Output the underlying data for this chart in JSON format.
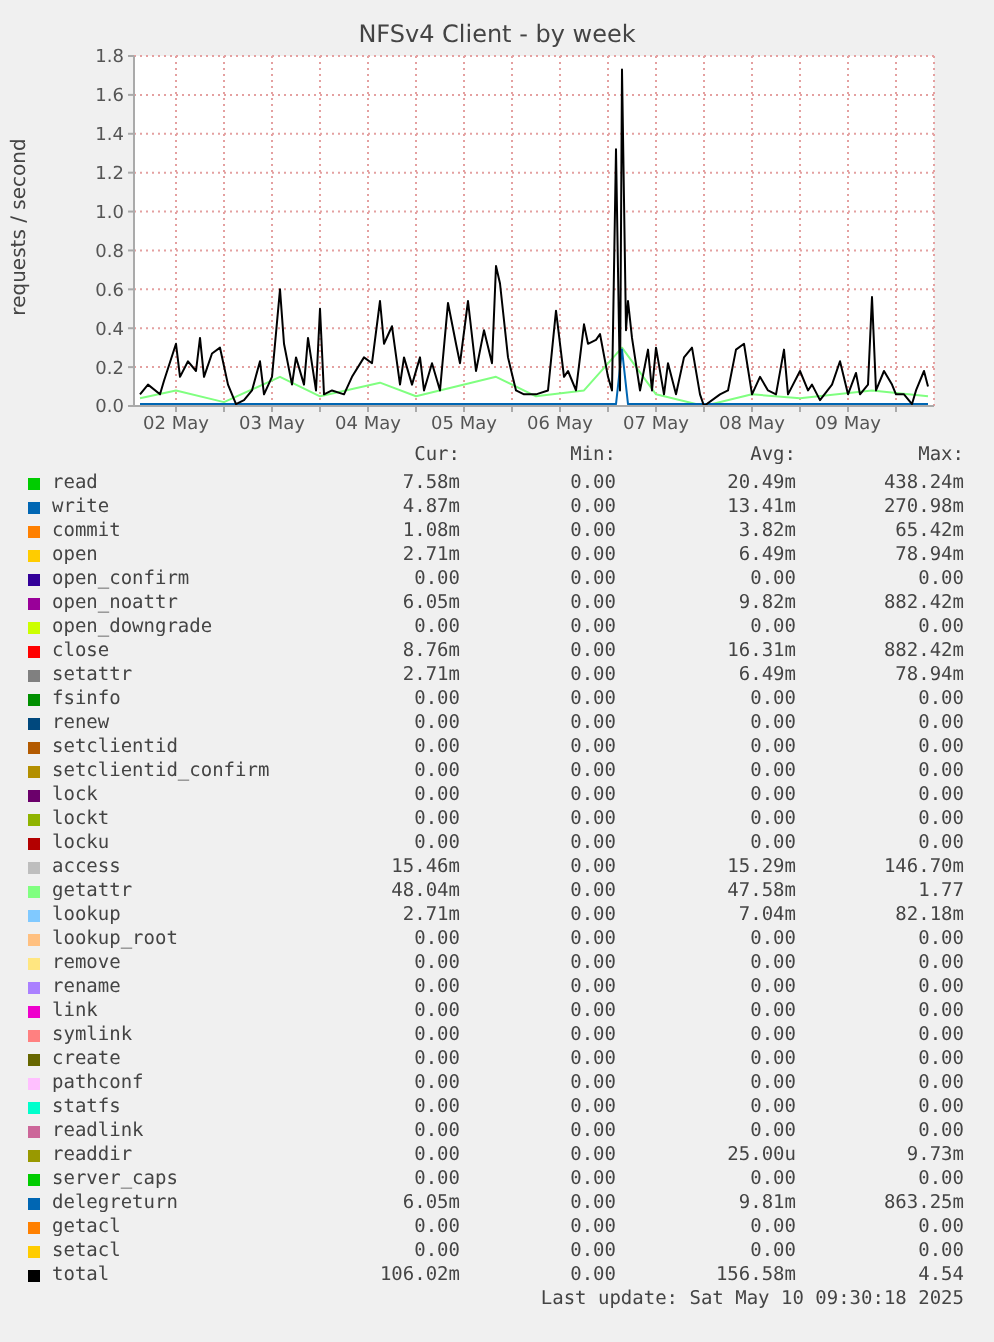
{
  "chart_data": {
    "type": "line",
    "title": "NFSv4 Client - by week",
    "ylabel": "requests / second",
    "xlim": [
      "2025-05-02T01:30",
      "2025-05-10T09:30"
    ],
    "xticks": [
      {
        "value": "2025-05-02T12:00",
        "label": "02 May"
      },
      {
        "value": "2025-05-03T00:00",
        "label": null
      },
      {
        "value": "2025-05-03T12:00",
        "label": "03 May"
      },
      {
        "value": "2025-05-04T00:00",
        "label": null
      },
      {
        "value": "2025-05-04T12:00",
        "label": "04 May"
      },
      {
        "value": "2025-05-05T00:00",
        "label": null
      },
      {
        "value": "2025-05-05T12:00",
        "label": "05 May"
      },
      {
        "value": "2025-05-06T00:00",
        "label": null
      },
      {
        "value": "2025-05-06T12:00",
        "label": "06 May"
      },
      {
        "value": "2025-05-07T00:00",
        "label": null
      },
      {
        "value": "2025-05-07T12:00",
        "label": "07 May"
      },
      {
        "value": "2025-05-08T00:00",
        "label": null
      },
      {
        "value": "2025-05-08T12:00",
        "label": "08 May"
      },
      {
        "value": "2025-05-09T00:00",
        "label": null
      },
      {
        "value": "2025-05-09T12:00",
        "label": "09 May"
      },
      {
        "value": "2025-05-10T00:00",
        "label": null
      }
    ],
    "ylim": [
      0,
      1.8
    ],
    "yticks": [
      {
        "value": 0,
        "label": "0.0"
      },
      {
        "value": 0.2,
        "label": "0.2"
      },
      {
        "value": 0.4,
        "label": "0.4"
      },
      {
        "value": 0.6,
        "label": "0.6"
      },
      {
        "value": 0.8,
        "label": "0.8"
      },
      {
        "value": 1,
        "label": "1.0"
      },
      {
        "value": 1.2,
        "label": "1.2"
      },
      {
        "value": 1.4,
        "label": "1.4"
      },
      {
        "value": 1.6,
        "label": "1.6"
      },
      {
        "value": 1.8,
        "label": "1.8"
      }
    ],
    "grid": true,
    "legend": "bottom",
    "series": [
      {
        "name": "read",
        "color": "#00cc00"
      },
      {
        "name": "write",
        "color": "#0066b3"
      },
      {
        "name": "commit",
        "color": "#ff8000"
      },
      {
        "name": "open",
        "color": "#ffcc00"
      },
      {
        "name": "open_confirm",
        "color": "#330099"
      },
      {
        "name": "open_noattr",
        "color": "#990099"
      },
      {
        "name": "open_downgrade",
        "color": "#ccff00"
      },
      {
        "name": "close",
        "color": "#ff0000"
      },
      {
        "name": "setattr",
        "color": "#808080"
      },
      {
        "name": "fsinfo",
        "color": "#008f00"
      },
      {
        "name": "renew",
        "color": "#00487d"
      },
      {
        "name": "setclientid",
        "color": "#b35a00"
      },
      {
        "name": "setclientid_confirm",
        "color": "#b38f00"
      },
      {
        "name": "lock",
        "color": "#6b006b"
      },
      {
        "name": "lockt",
        "color": "#8fb300"
      },
      {
        "name": "locku",
        "color": "#b30000"
      },
      {
        "name": "access",
        "color": "#bebebe"
      },
      {
        "name": "getattr",
        "color": "#80ff80",
        "x": [
          "2025-05-02T03:00",
          "2025-05-02T12:00",
          "2025-05-03T00:00",
          "2025-05-03T14:00",
          "2025-05-04T00:00",
          "2025-05-04T15:00",
          "2025-05-05T00:00",
          "2025-05-05T20:00",
          "2025-05-06T06:00",
          "2025-05-06T18:00",
          "2025-05-07T03:30",
          "2025-05-07T12:00",
          "2025-05-08T00:00",
          "2025-05-08T12:00",
          "2025-05-09T00:00",
          "2025-05-09T18:00",
          "2025-05-10T08:00"
        ],
        "values": [
          0.04,
          0.08,
          0.02,
          0.15,
          0.05,
          0.12,
          0.05,
          0.15,
          0.05,
          0.08,
          0.3,
          0.06,
          0,
          0.06,
          0.04,
          0.08,
          0.05
        ]
      },
      {
        "name": "lookup",
        "color": "#80c9ff"
      },
      {
        "name": "lookup_root",
        "color": "#ffc080"
      },
      {
        "name": "remove",
        "color": "#ffe680"
      },
      {
        "name": "rename",
        "color": "#aa80ff"
      },
      {
        "name": "link",
        "color": "#ee00cc"
      },
      {
        "name": "symlink",
        "color": "#ff8080"
      },
      {
        "name": "create",
        "color": "#666600"
      },
      {
        "name": "pathconf",
        "color": "#ffbfff"
      },
      {
        "name": "statfs",
        "color": "#00ffcc"
      },
      {
        "name": "readlink",
        "color": "#cc6699"
      },
      {
        "name": "readdir",
        "color": "#999900"
      },
      {
        "name": "server_caps",
        "color": "#00cc00"
      },
      {
        "name": "delegreturn",
        "color": "#0066b3",
        "x": [
          "2025-05-02T03:00",
          "2025-05-07T02:00",
          "2025-05-07T03:30",
          "2025-05-07T05:00",
          "2025-05-10T08:00"
        ],
        "values": [
          0.01,
          0.01,
          0.29,
          0.01,
          0.01
        ]
      },
      {
        "name": "getacl",
        "color": "#ff8000"
      },
      {
        "name": "setacl",
        "color": "#ffcc00"
      },
      {
        "name": "total",
        "color": "#000000",
        "x": [
          "2025-05-02T03:00",
          "2025-05-02T05:00",
          "2025-05-02T08:00",
          "2025-05-02T09:00",
          "2025-05-02T12:00",
          "2025-05-02T13:00",
          "2025-05-02T15:00",
          "2025-05-02T17:00",
          "2025-05-02T18:00",
          "2025-05-02T19:00",
          "2025-05-02T21:00",
          "2025-05-02T23:00",
          "2025-05-03T01:00",
          "2025-05-03T03:00",
          "2025-05-03T05:00",
          "2025-05-03T07:00",
          "2025-05-03T09:00",
          "2025-05-03T10:00",
          "2025-05-03T12:00",
          "2025-05-03T14:00",
          "2025-05-03T15:00",
          "2025-05-03T17:00",
          "2025-05-03T18:00",
          "2025-05-03T20:00",
          "2025-05-03T21:00",
          "2025-05-03T23:00",
          "2025-05-04T00:00",
          "2025-05-04T01:00",
          "2025-05-04T03:00",
          "2025-05-04T06:00",
          "2025-05-04T08:00",
          "2025-05-04T11:00",
          "2025-05-04T13:00",
          "2025-05-04T15:00",
          "2025-05-04T16:00",
          "2025-05-04T18:00",
          "2025-05-04T20:00",
          "2025-05-04T21:00",
          "2025-05-04T23:00",
          "2025-05-05T01:00",
          "2025-05-05T02:00",
          "2025-05-05T04:00",
          "2025-05-05T06:00",
          "2025-05-05T08:00",
          "2025-05-05T10:00",
          "2025-05-05T11:00",
          "2025-05-05T13:00",
          "2025-05-05T15:00",
          "2025-05-05T17:00",
          "2025-05-05T19:00",
          "2025-05-05T20:00",
          "2025-05-05T21:00",
          "2025-05-05T23:00",
          "2025-05-06T01:00",
          "2025-05-06T03:00",
          "2025-05-06T06:00",
          "2025-05-06T09:00",
          "2025-05-06T11:00",
          "2025-05-06T13:00",
          "2025-05-06T14:00",
          "2025-05-06T16:00",
          "2025-05-06T18:00",
          "2025-05-06T19:00",
          "2025-05-06T21:00",
          "2025-05-06T22:00",
          "2025-05-07T00:00",
          "2025-05-07T01:00",
          "2025-05-07T02:00",
          "2025-05-07T03:00",
          "2025-05-07T03:30",
          "2025-05-07T04:30",
          "2025-05-07T05:00",
          "2025-05-07T06:00",
          "2025-05-07T08:00",
          "2025-05-07T10:00",
          "2025-05-07T11:00",
          "2025-05-07T12:00",
          "2025-05-07T14:00",
          "2025-05-07T15:00",
          "2025-05-07T17:00",
          "2025-05-07T19:00",
          "2025-05-07T21:00",
          "2025-05-07T23:00",
          "2025-05-08T00:00",
          "2025-05-08T04:00",
          "2025-05-08T06:00",
          "2025-05-08T08:00",
          "2025-05-08T10:00",
          "2025-05-08T12:00",
          "2025-05-08T14:00",
          "2025-05-08T16:00",
          "2025-05-08T18:00",
          "2025-05-08T20:00",
          "2025-05-08T21:00",
          "2025-05-09T00:00",
          "2025-05-09T02:00",
          "2025-05-09T03:00",
          "2025-05-09T05:00",
          "2025-05-09T08:00",
          "2025-05-09T10:00",
          "2025-05-09T12:00",
          "2025-05-09T14:00",
          "2025-05-09T15:00",
          "2025-05-09T17:00",
          "2025-05-09T18:00",
          "2025-05-09T19:00",
          "2025-05-09T21:00",
          "2025-05-09T23:00",
          "2025-05-10T00:00",
          "2025-05-10T02:00",
          "2025-05-10T04:00",
          "2025-05-10T05:00",
          "2025-05-10T07:00",
          "2025-05-10T08:00"
        ],
        "values": [
          0.06,
          0.11,
          0.06,
          0.13,
          0.32,
          0.15,
          0.23,
          0.18,
          0.35,
          0.15,
          0.27,
          0.3,
          0.11,
          0.01,
          0.03,
          0.08,
          0.23,
          0.06,
          0.15,
          0.6,
          0.32,
          0.11,
          0.25,
          0.11,
          0.35,
          0.08,
          0.5,
          0.06,
          0.08,
          0.06,
          0.15,
          0.25,
          0.22,
          0.54,
          0.32,
          0.41,
          0.11,
          0.25,
          0.11,
          0.25,
          0.08,
          0.22,
          0.08,
          0.53,
          0.32,
          0.22,
          0.54,
          0.18,
          0.39,
          0.22,
          0.72,
          0.63,
          0.25,
          0.08,
          0.06,
          0.06,
          0.08,
          0.49,
          0.15,
          0.18,
          0.08,
          0.42,
          0.32,
          0.34,
          0.37,
          0.15,
          0.08,
          1.32,
          0.08,
          1.73,
          0.39,
          0.54,
          0.35,
          0.08,
          0.29,
          0.08,
          0.3,
          0.06,
          0.22,
          0.06,
          0.25,
          0.3,
          0.06,
          0,
          0.06,
          0.08,
          0.29,
          0.32,
          0.06,
          0.15,
          0.08,
          0.06,
          0.29,
          0.06,
          0.18,
          0.08,
          0.11,
          0.03,
          0.11,
          0.23,
          0.06,
          0.17,
          0.06,
          0.11,
          0.56,
          0.08,
          0.18,
          0.11,
          0.06,
          0.06,
          0.01,
          0.08,
          0.18,
          0.1
        ]
      }
    ],
    "annotations": [
      "Cur:",
      "Min:",
      "Avg:",
      "Max:",
      "7.58m",
      "0.00",
      "20.49m",
      "438.24m",
      "4.87m",
      "0.00",
      "13.41m",
      "270.98m",
      "1.08m",
      "0.00",
      "3.82m",
      "65.42m",
      "2.71m",
      "0.00",
      "6.49m",
      "78.94m",
      "0.00",
      "0.00",
      "0.00",
      "0.00",
      "6.05m",
      "0.00",
      "9.82m",
      "882.42m",
      "0.00",
      "0.00",
      "0.00",
      "0.00",
      "8.76m",
      "0.00",
      "16.31m",
      "882.42m",
      "2.71m",
      "0.00",
      "6.49m",
      "78.94m",
      "0.00",
      "0.00",
      "0.00",
      "0.00",
      "0.00",
      "0.00",
      "0.00",
      "0.00",
      "0.00",
      "0.00",
      "0.00",
      "0.00",
      "0.00",
      "0.00",
      "0.00",
      "0.00",
      "0.00",
      "0.00",
      "0.00",
      "0.00",
      "0.00",
      "0.00",
      "0.00",
      "0.00",
      "0.00",
      "0.00",
      "0.00",
      "0.00",
      "15.46m",
      "0.00",
      "15.29m",
      "146.70m",
      "48.04m",
      "0.00",
      "47.58m",
      "1.77",
      "2.71m",
      "0.00",
      "7.04m",
      "82.18m",
      "0.00",
      "0.00",
      "0.00",
      "0.00",
      "0.00",
      "0.00",
      "0.00",
      "0.00",
      "0.00",
      "0.00",
      "0.00",
      "0.00",
      "0.00",
      "0.00",
      "0.00",
      "0.00",
      "0.00",
      "0.00",
      "0.00",
      "0.00",
      "0.00",
      "0.00",
      "0.00",
      "0.00",
      "0.00",
      "0.00",
      "0.00",
      "0.00",
      "0.00",
      "0.00",
      "0.00",
      "0.00",
      "0.00",
      "0.00",
      "0.00",
      "0.00",
      "0.00",
      "0.00",
      "25.00u",
      "9.73m",
      "0.00",
      "0.00",
      "0.00",
      "0.00",
      "6.05m",
      "0.00",
      "9.81m",
      "863.25m",
      "0.00",
      "0.00",
      "0.00",
      "0.00",
      "0.00",
      "0.00",
      "0.00",
      "0.00",
      "106.02m",
      "0.00",
      "156.58m",
      "4.54",
      "Last update: Sat May 10 09:30:18 2025"
    ]
  }
}
